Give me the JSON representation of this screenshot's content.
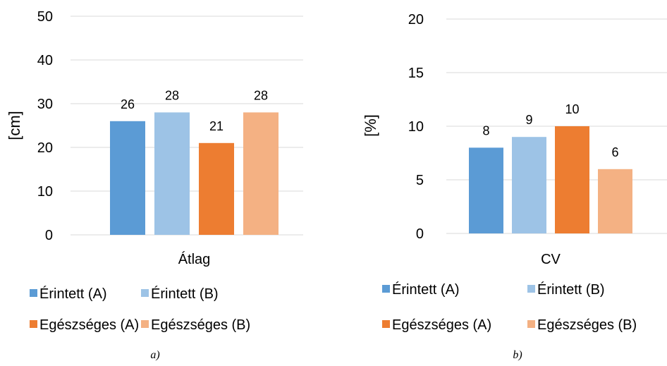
{
  "chart_data": [
    {
      "type": "bar",
      "categories": [
        "Átlag"
      ],
      "series": [
        {
          "name": "Érintett (A)",
          "values": [
            26
          ],
          "color": "#5b9bd5"
        },
        {
          "name": "Érintett (B)",
          "values": [
            28
          ],
          "color": "#9dc3e6"
        },
        {
          "name": "Egészséges (A)",
          "values": [
            21
          ],
          "color": "#ed7d31"
        },
        {
          "name": "Egészséges (B)",
          "values": [
            28
          ],
          "color": "#f4b183"
        }
      ],
      "data_labels": [
        "26",
        "28",
        "21",
        "28"
      ],
      "ylabel": "[cm]",
      "ylim": [
        0,
        50
      ],
      "yticks": [
        0,
        10,
        20,
        30,
        40,
        50
      ],
      "grid": true,
      "legend": "bottom",
      "caption": "a)"
    },
    {
      "type": "bar",
      "categories": [
        "CV"
      ],
      "series": [
        {
          "name": "Érintett (A)",
          "values": [
            8
          ],
          "color": "#5b9bd5"
        },
        {
          "name": "Érintett (B)",
          "values": [
            9
          ],
          "color": "#9dc3e6"
        },
        {
          "name": "Egészséges (A)",
          "values": [
            10
          ],
          "color": "#ed7d31"
        },
        {
          "name": "Egészséges (B)",
          "values": [
            6
          ],
          "color": "#f4b183"
        }
      ],
      "data_labels": [
        "8",
        "9",
        "10",
        "6"
      ],
      "ylabel": "[%]",
      "ylim": [
        0,
        20
      ],
      "yticks": [
        0,
        5,
        10,
        15,
        20
      ],
      "grid": true,
      "legend": "bottom",
      "caption": "b)"
    }
  ]
}
